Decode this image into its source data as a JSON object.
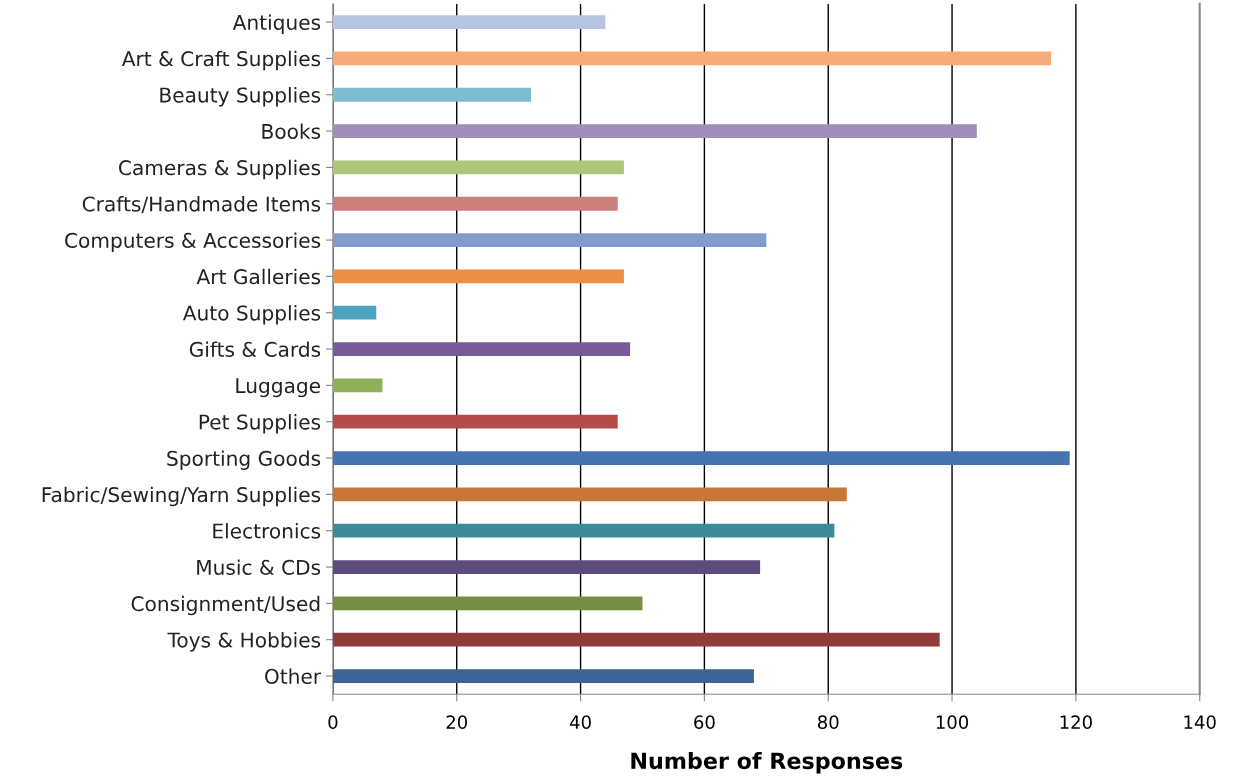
{
  "chart_data": {
    "type": "bar",
    "orientation": "horizontal",
    "xlabel": "Number of Responses",
    "categories": [
      "Antiques",
      "Art & Craft Supplies",
      "Beauty Supplies",
      "Books",
      "Cameras & Supplies",
      "Crafts/Handmade Items",
      "Computers & Accessories",
      "Art Galleries",
      "Auto Supplies",
      "Gifts & Cards",
      "Luggage",
      "Pet Supplies",
      "Sporting Goods",
      "Fabric/Sewing/Yarn Supplies",
      "Electronics",
      "Music & CDs",
      "Consignment/Used",
      "Toys & Hobbies",
      "Other"
    ],
    "values": [
      44,
      116,
      32,
      104,
      47,
      46,
      70,
      47,
      7,
      48,
      8,
      46,
      119,
      83,
      81,
      69,
      50,
      98,
      68
    ],
    "colors": [
      "#b7c4df",
      "#f8ab78",
      "#7fbbd0",
      "#a08dbb",
      "#adc67e",
      "#cc7f7d",
      "#809ccb",
      "#eb8f44",
      "#4ba3bf",
      "#765b9a",
      "#8fb058",
      "#b34b48",
      "#4774b0",
      "#c97736",
      "#3b8b9a",
      "#5f4a7e",
      "#758f41",
      "#923c39",
      "#3c6596"
    ],
    "xlim": [
      0,
      140
    ],
    "xticks": [
      0,
      20,
      40,
      60,
      80,
      100,
      120,
      140
    ],
    "grid": "x",
    "legend": false
  }
}
